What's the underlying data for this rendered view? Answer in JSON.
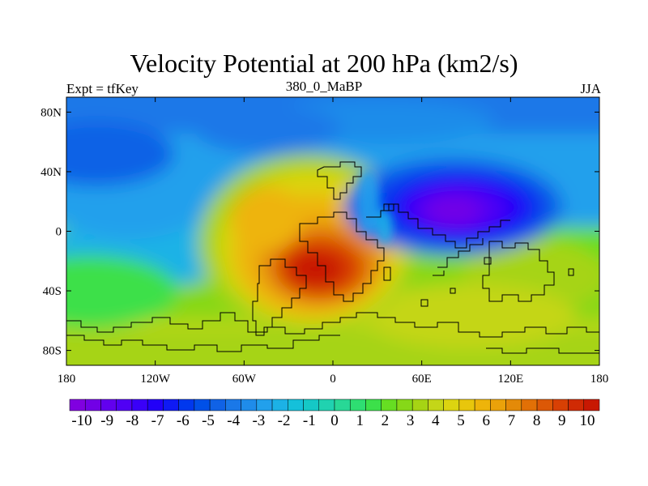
{
  "title": "Velocity Potential at 200 hPa (km2/s)",
  "left_subtitle": "Expt = tfKey",
  "center_subtitle": "380_0_MaBP",
  "right_subtitle": "JJA",
  "chart_data": {
    "type": "heatmap",
    "title": "Velocity Potential at 200 hPa (km2/s)",
    "units": "km2/s",
    "x_axis": {
      "range": [
        -180,
        180
      ],
      "ticks": [
        -180,
        -120,
        -60,
        0,
        60,
        120,
        180
      ],
      "tick_labels": [
        "180",
        "120W",
        "60W",
        "0",
        "60E",
        "120E",
        "180"
      ]
    },
    "y_axis": {
      "range": [
        -90,
        90
      ],
      "ticks": [
        80,
        40,
        0,
        -40,
        -80
      ],
      "tick_labels": [
        "80N",
        "40N",
        "0",
        "40S",
        "80S"
      ]
    },
    "colorbar": {
      "labels": [
        "-10",
        "-9",
        "-8",
        "-7",
        "-6",
        "-5",
        "-4",
        "-3",
        "-2",
        "-1",
        "0",
        "1",
        "2",
        "3",
        "4",
        "5",
        "6",
        "7",
        "8",
        "9",
        "10"
      ],
      "levels": [
        -10,
        -9.5,
        -9,
        -8.5,
        -8,
        -7.5,
        -7,
        -6.5,
        -6,
        -5.5,
        -5,
        -4.5,
        -4,
        -3.5,
        -3,
        -2.5,
        -2,
        -1.5,
        -1,
        -0.5,
        0,
        0.5,
        1,
        1.5,
        2,
        2.5,
        3,
        3.5,
        4,
        4.5,
        5,
        5.5,
        6,
        6.5,
        7,
        7.5,
        8,
        8.5,
        9,
        9.5,
        10
      ],
      "colors": [
        "#8000e0",
        "#7200e6",
        "#6200ee",
        "#5000f4",
        "#3a00f8",
        "#2200f8",
        "#0f1af4",
        "#0038ee",
        "#0050e8",
        "#1062e6",
        "#1a78e8",
        "#1f8cea",
        "#22a0ec",
        "#1cb2e6",
        "#15c0da",
        "#15c8c6",
        "#20d2b0",
        "#28d896",
        "#2ede72",
        "#3ce04a",
        "#66de22",
        "#86d818",
        "#a6d414",
        "#c4d618",
        "#dcd410",
        "#e8c60c",
        "#eeb40a",
        "#eaa20a",
        "#e48a08",
        "#e27006",
        "#dc5806",
        "#d84004",
        "#d02a04",
        "#c81802"
      ]
    },
    "features": [
      {
        "name": "divergence center",
        "lon": -15,
        "lat": -25,
        "value": 10
      },
      {
        "name": "convergence center",
        "lon": 75,
        "lat": 10,
        "value": -10
      }
    ],
    "grid": false
  }
}
